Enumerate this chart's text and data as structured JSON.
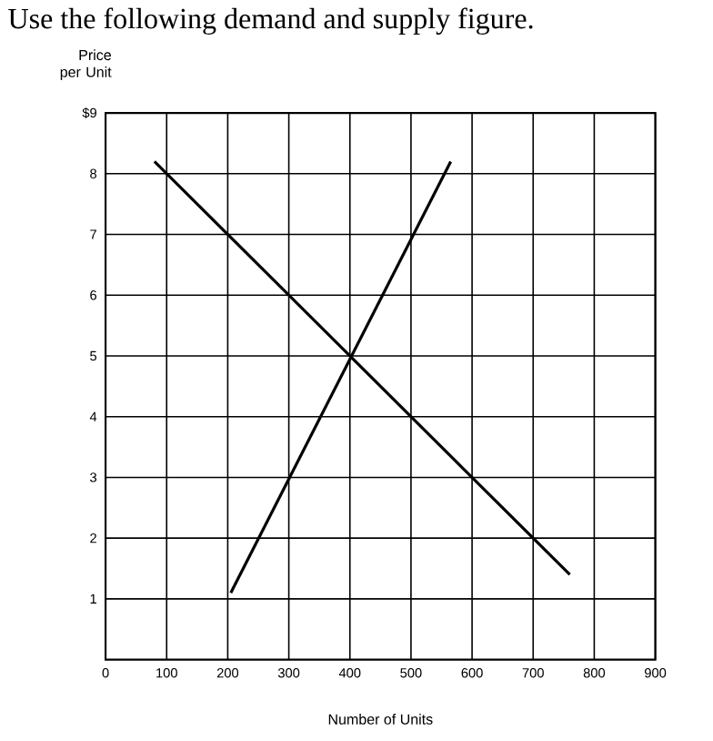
{
  "chart_data": {
    "type": "line",
    "title": "Use the following demand and supply figure.",
    "xlabel": "Number of Units",
    "ylabel": "Price per Unit",
    "series": [
      {
        "color": "#000000",
        "x": [
          80,
          760
        ],
        "values": [
          8.2,
          1.4
        ]
      },
      {
        "color": "#000000",
        "x": [
          205,
          565
        ],
        "values": [
          1.1,
          8.2
        ]
      }
    ],
    "xlim": [
      0,
      900
    ],
    "ylim": [
      0,
      9
    ],
    "xticks": [
      0,
      100,
      200,
      300,
      400,
      500,
      600,
      700,
      800,
      900
    ],
    "yticks": [
      1,
      2,
      3,
      4,
      5,
      6,
      7,
      8,
      {
        "value": 9,
        "label": "$9"
      }
    ],
    "grid": true
  }
}
